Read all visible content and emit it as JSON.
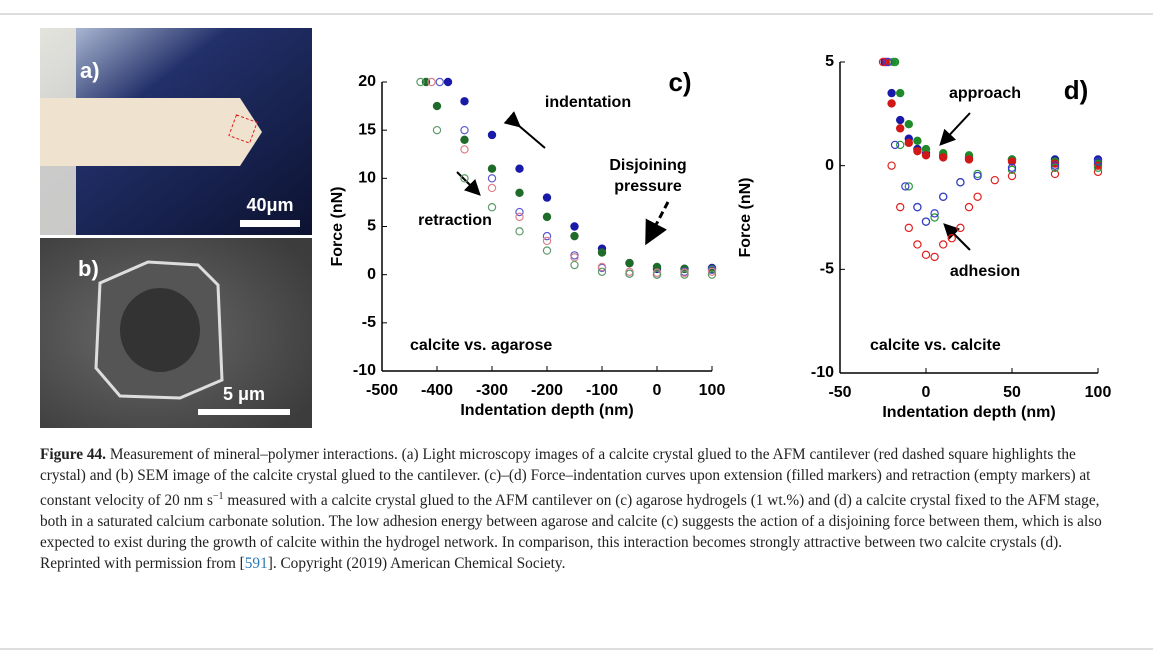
{
  "panels": {
    "a": {
      "label": "a)",
      "scale": "40μm"
    },
    "b": {
      "label": "b)",
      "scale": "5 μm"
    }
  },
  "chart_data": [
    {
      "type": "scatter",
      "panel_label": "c)",
      "x_label": "Indentation depth (nm)",
      "y_label": "Force (nN)",
      "xlim": [
        -500,
        100
      ],
      "xticks": [
        -500,
        -400,
        -300,
        -200,
        -100,
        0,
        100
      ],
      "ylim": [
        -10,
        20
      ],
      "yticks": [
        -10,
        -5,
        0,
        5,
        10,
        15,
        20
      ],
      "annotations": [
        "indentation",
        "retraction",
        "Disjoining",
        "pressure",
        "calcite vs. agarose"
      ],
      "series": [
        {
          "color": "#1a1aa8",
          "marker": "filled",
          "x": [
            -380,
            -350,
            -300,
            -250,
            -200,
            -150,
            -100,
            -50,
            0,
            50,
            100
          ],
          "values": [
            20,
            18,
            14.5,
            11,
            8,
            5,
            2.7,
            1.2,
            0.6,
            0.6,
            0.7
          ]
        },
        {
          "color": "#1f6b2a",
          "marker": "filled",
          "x": [
            -420,
            -400,
            -350,
            -300,
            -250,
            -200,
            -150,
            -100,
            -50,
            0,
            50,
            100
          ],
          "values": [
            20,
            17.5,
            14,
            11,
            8.5,
            6,
            4,
            2.3,
            1.2,
            0.8,
            0.6,
            0.6
          ]
        },
        {
          "color": "#5a5ad0",
          "marker": "open",
          "x": [
            -395,
            -350,
            -300,
            -250,
            -200,
            -150,
            -100,
            -50,
            0,
            50,
            100
          ],
          "values": [
            20,
            15,
            10,
            6.5,
            4,
            2,
            0.7,
            0.1,
            0,
            0.3,
            0.5
          ]
        },
        {
          "color": "#e0808a",
          "marker": "open",
          "x": [
            -410,
            -350,
            -300,
            -250,
            -200,
            -150,
            -100,
            -50,
            0,
            50,
            100
          ],
          "values": [
            20,
            13,
            9,
            6,
            3.5,
            1.8,
            0.8,
            0.3,
            0.2,
            0.2,
            0.3
          ]
        },
        {
          "color": "#5e9a6a",
          "marker": "open",
          "x": [
            -430,
            -400,
            -350,
            -300,
            -250,
            -200,
            -150,
            -100,
            -50,
            0,
            50,
            100
          ],
          "values": [
            20,
            15,
            10,
            7,
            4.5,
            2.5,
            1,
            0.3,
            0.1,
            0,
            0,
            0
          ]
        }
      ]
    },
    {
      "type": "scatter",
      "panel_label": "d)",
      "x_label": "Indentation depth (nm)",
      "y_label": "Force (nN)",
      "xlim": [
        -50,
        100
      ],
      "xticks": [
        -50,
        0,
        50,
        100
      ],
      "ylim": [
        -10,
        5
      ],
      "yticks": [
        -10,
        -5,
        0,
        5
      ],
      "annotations": [
        "approach",
        "adhesion",
        "calcite vs. calcite"
      ],
      "series": [
        {
          "color": "#1a1aa8",
          "marker": "filled",
          "x": [
            -24,
            -20,
            -15,
            -10,
            -5,
            0,
            10,
            25,
            50,
            75,
            100
          ],
          "values": [
            5,
            3.5,
            2.2,
            1.3,
            0.8,
            0.6,
            0.5,
            0.4,
            0.3,
            0.3,
            0.3
          ]
        },
        {
          "color": "#1f8a2a",
          "marker": "filled",
          "x": [
            -18,
            -15,
            -10,
            -5,
            0,
            10,
            25,
            50,
            75,
            100
          ],
          "values": [
            5,
            3.5,
            2,
            1.2,
            0.8,
            0.6,
            0.5,
            0.3,
            0.2,
            0.1
          ]
        },
        {
          "color": "#d01818",
          "marker": "filled",
          "x": [
            -23,
            -20,
            -15,
            -10,
            -5,
            0,
            10,
            25,
            50,
            75,
            100
          ],
          "values": [
            5,
            3,
            1.8,
            1.1,
            0.7,
            0.5,
            0.4,
            0.3,
            0.2,
            0.1,
            0
          ]
        },
        {
          "color": "#e02020",
          "marker": "open",
          "x": [
            -25,
            -20,
            -15,
            -10,
            -5,
            0,
            5,
            10,
            15,
            20,
            25,
            30,
            40,
            50,
            75,
            100
          ],
          "values": [
            5,
            0,
            -2,
            -3,
            -3.8,
            -4.3,
            -4.4,
            -3.8,
            -3.5,
            -3,
            -2,
            -1.5,
            -0.7,
            -0.5,
            -0.4,
            -0.3
          ]
        },
        {
          "color": "#2a9a3a",
          "marker": "open",
          "x": [
            -19,
            -15,
            -10,
            -5,
            0,
            5,
            10,
            20,
            30,
            50,
            75,
            100
          ],
          "values": [
            5,
            1,
            -1,
            -2,
            -2.7,
            -2.5,
            -1.5,
            -0.8,
            -0.4,
            -0.2,
            -0.1,
            -0.1
          ]
        },
        {
          "color": "#3a3ad0",
          "marker": "open",
          "x": [
            -22,
            -18,
            -12,
            -5,
            0,
            5,
            10,
            20,
            30,
            50,
            75,
            100
          ],
          "values": [
            5,
            1,
            -1,
            -2,
            -2.7,
            -2.3,
            -1.5,
            -0.8,
            -0.5,
            -0.1,
            0,
            0.2
          ]
        }
      ]
    }
  ],
  "caption": {
    "label": "Figure 44.",
    "body_1": "Measurement of mineral–polymer interactions. (a) Light microscopy images of a calcite crystal glued to the AFM cantilever (red dashed square highlights the crystal) and (b) SEM image of the calcite crystal glued to the cantilever. (c)–(d) Force–indentation curves upon extension (filled markers) and retraction (empty markers) at constant velocity of 20 nm s",
    "exponent": "−1",
    "body_2": "measured with a calcite crystal glued to the AFM cantilever on (c) agarose hydrogels (1 wt.%) and (d) a calcite crystal fixed to the AFM stage, both in a saturated calcium carbonate solution. The low adhesion energy between agarose and calcite (c) suggests the action of a disjoining force between them, which is also expected to exist during the growth of calcite within the hydrogel network. In comparison, this interaction becomes strongly attractive between two calcite crystals (d). Reprinted with permission from [",
    "reference": "591",
    "body_3": "]. Copyright (2019) American Chemical Society."
  }
}
